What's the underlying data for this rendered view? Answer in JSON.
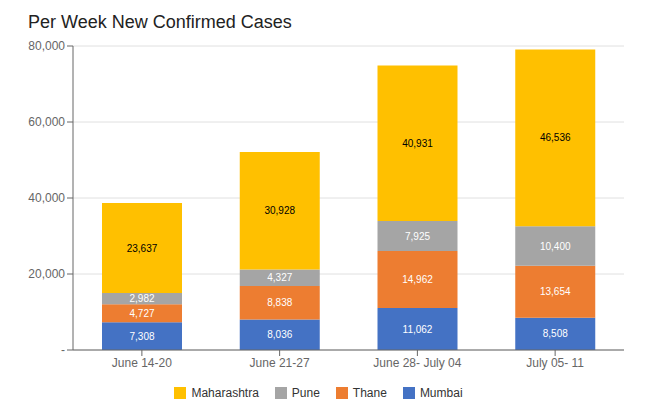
{
  "chart_data": {
    "type": "bar",
    "title": "Per Week New Confirmed Cases",
    "stacked": true,
    "grid": true,
    "legend": "bottom",
    "data_labels": true,
    "categories": [
      "June 14-20",
      "June 21-27",
      "June 28- July 04",
      "July 05- 11"
    ],
    "series": [
      {
        "name": "Mumbai",
        "color": "#4472C4",
        "values": [
          7308,
          8036,
          11062,
          8508
        ],
        "value_labels": [
          "7,308",
          "8,036",
          "11,062",
          "8,508"
        ]
      },
      {
        "name": "Thane",
        "color": "#ED7D31",
        "values": [
          4727,
          8838,
          14962,
          13654
        ],
        "value_labels": [
          "4,727",
          "8,838",
          "14,962",
          "13,654"
        ]
      },
      {
        "name": "Pune",
        "color": "#A5A5A5",
        "values": [
          2982,
          4327,
          7925,
          10400
        ],
        "value_labels": [
          "2,982",
          "4,327",
          "7,925",
          "10,400"
        ]
      },
      {
        "name": "Maharashtra",
        "color": "#FFC000",
        "values": [
          23637,
          30928,
          40931,
          46536
        ],
        "value_labels": [
          "23,637",
          "30,928",
          "40,931",
          "46,536"
        ]
      }
    ],
    "ylim": [
      0,
      80000
    ],
    "yticks": [
      {
        "value": 0,
        "label": "-"
      },
      {
        "value": 20000,
        "label": "20,000"
      },
      {
        "value": 40000,
        "label": "40,000"
      },
      {
        "value": 60000,
        "label": "60,000"
      },
      {
        "value": 80000,
        "label": "80,000"
      }
    ]
  }
}
